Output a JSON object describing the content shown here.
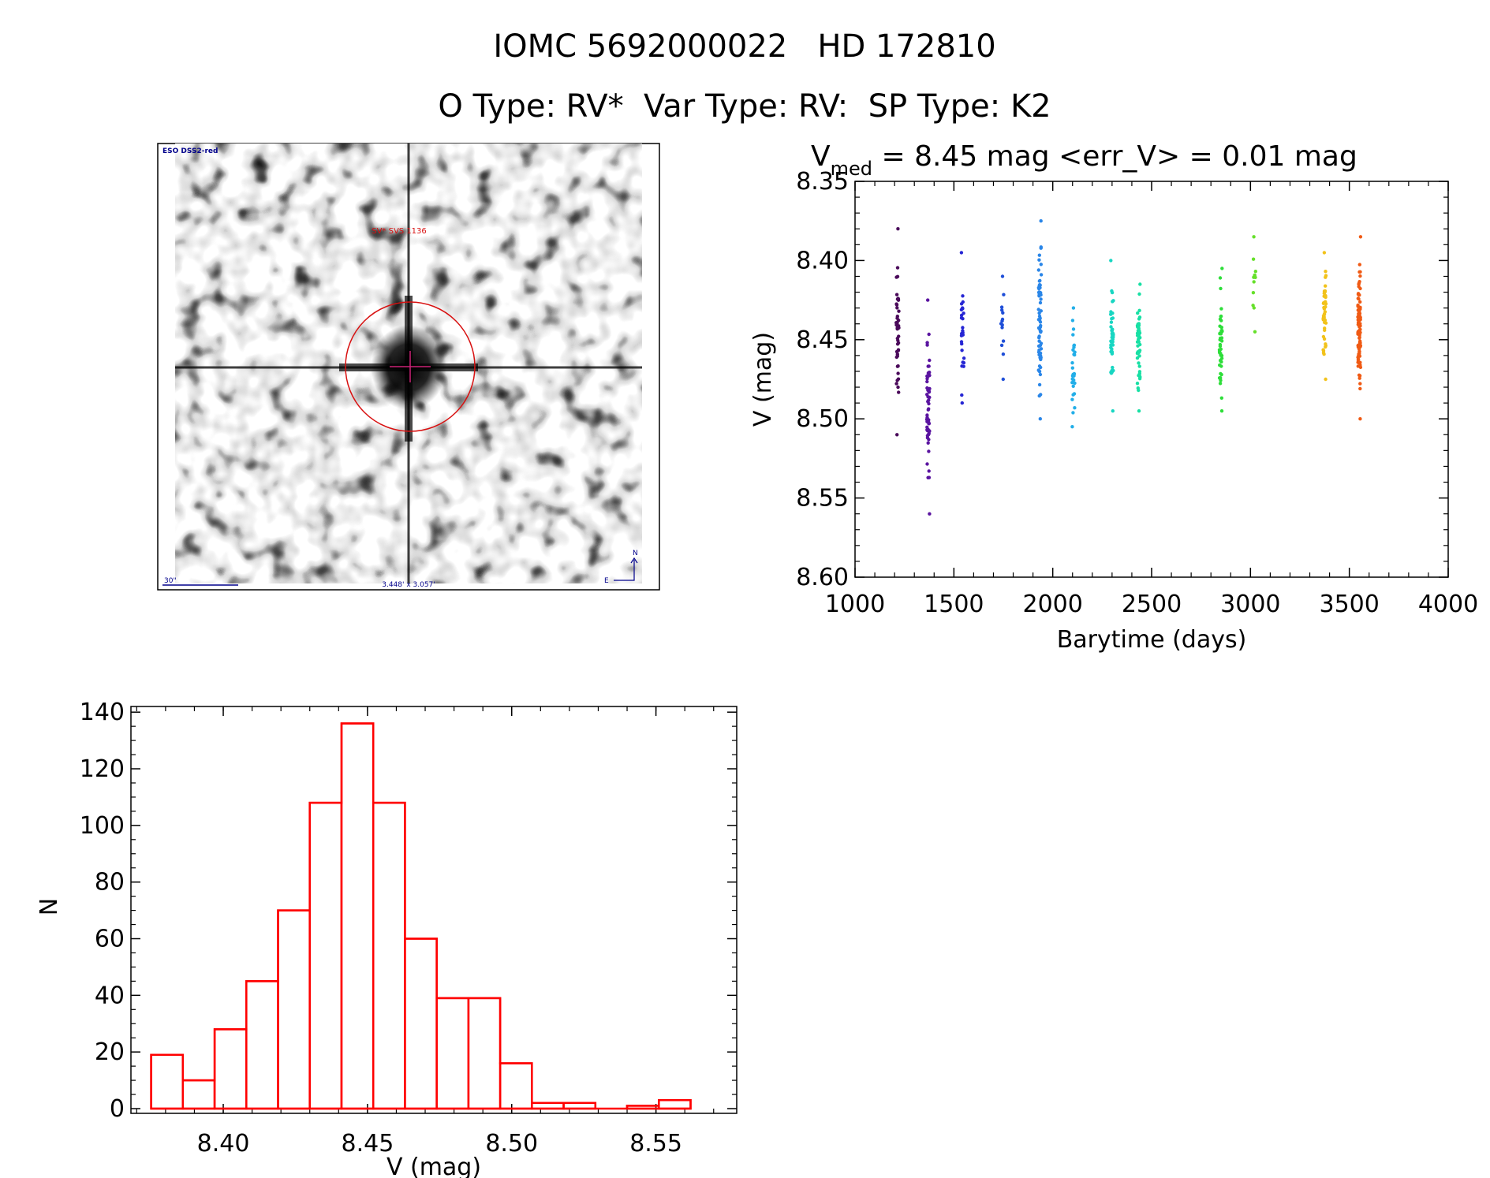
{
  "header": {
    "title": "IOMC 5692000022   HD 172810",
    "subtitle": "O Type: RV*  Var Type: RV:  SP Type: K2"
  },
  "finder_image": {
    "survey_label": "ESO DSS2-red",
    "object_label": "SV* SVS 1136",
    "scale_label": "30\"",
    "fov_label": "3.448' x 3.057'",
    "north_label": "N",
    "east_label": "E"
  },
  "lightcurve": {
    "title_main": "V",
    "title_sub": "med",
    "title_rest": " = 8.45 mag <err_V> = 0.01 mag",
    "xlabel": "Barytime (days)",
    "ylabel": "V (mag)",
    "xlim": [
      1000,
      4000
    ],
    "ylim": [
      8.6,
      8.35
    ],
    "xticks": [
      "1000",
      "1500",
      "2000",
      "2500",
      "3000",
      "3500",
      "4000"
    ],
    "yticks": [
      "8.35",
      "8.40",
      "8.45",
      "8.50",
      "8.55",
      "8.60"
    ]
  },
  "histogram": {
    "xlabel": "V (mag)",
    "ylabel": "N",
    "xticks": [
      "8.40",
      "8.45",
      "8.50",
      "8.55"
    ],
    "yticks": [
      "0",
      "20",
      "40",
      "60",
      "80",
      "100",
      "120",
      "140"
    ]
  },
  "chart_data": [
    {
      "type": "scatter",
      "xlim": [
        1000,
        4000
      ],
      "ylim": [
        8.35,
        8.6
      ],
      "y_inverted": true,
      "grid": false,
      "groups": [
        {
          "x": 1215,
          "y_min": 8.38,
          "y_max": 8.51,
          "n": 45,
          "color": "#4a0a5a"
        },
        {
          "x": 1370,
          "y_min": 8.425,
          "y_max": 8.56,
          "n": 55,
          "color": "#5a14a0"
        },
        {
          "x": 1545,
          "y_min": 8.395,
          "y_max": 8.49,
          "n": 28,
          "color": "#2626d4"
        },
        {
          "x": 1745,
          "y_min": 8.41,
          "y_max": 8.475,
          "n": 14,
          "color": "#1f4fd8"
        },
        {
          "x": 1935,
          "y_min": 8.375,
          "y_max": 8.5,
          "n": 70,
          "color": "#2a86e8"
        },
        {
          "x": 2105,
          "y_min": 8.43,
          "y_max": 8.505,
          "n": 30,
          "color": "#22aee8"
        },
        {
          "x": 2300,
          "y_min": 8.4,
          "y_max": 8.495,
          "n": 45,
          "color": "#18d6c2"
        },
        {
          "x": 2435,
          "y_min": 8.415,
          "y_max": 8.495,
          "n": 50,
          "color": "#18e0a4"
        },
        {
          "x": 2850,
          "y_min": 8.405,
          "y_max": 8.495,
          "n": 45,
          "color": "#2ede3a"
        },
        {
          "x": 3020,
          "y_min": 8.385,
          "y_max": 8.445,
          "n": 12,
          "color": "#66e02a"
        },
        {
          "x": 3375,
          "y_min": 8.395,
          "y_max": 8.475,
          "n": 45,
          "color": "#f2c21a"
        },
        {
          "x": 3550,
          "y_min": 8.385,
          "y_max": 8.5,
          "n": 95,
          "color": "#f05a14"
        }
      ]
    },
    {
      "type": "bar",
      "histtype": "step",
      "color": "#ff0000",
      "bin_edges": [
        8.375,
        8.386,
        8.397,
        8.408,
        8.419,
        8.43,
        8.441,
        8.452,
        8.463,
        8.474,
        8.485,
        8.496,
        8.507,
        8.518,
        8.529,
        8.54,
        8.551,
        8.562
      ],
      "values": [
        19,
        10,
        28,
        45,
        70,
        108,
        136,
        108,
        60,
        39,
        39,
        16,
        2,
        2,
        0,
        1,
        3
      ],
      "xlim": [
        8.368,
        8.578
      ],
      "ylim": [
        0,
        142
      ]
    }
  ]
}
